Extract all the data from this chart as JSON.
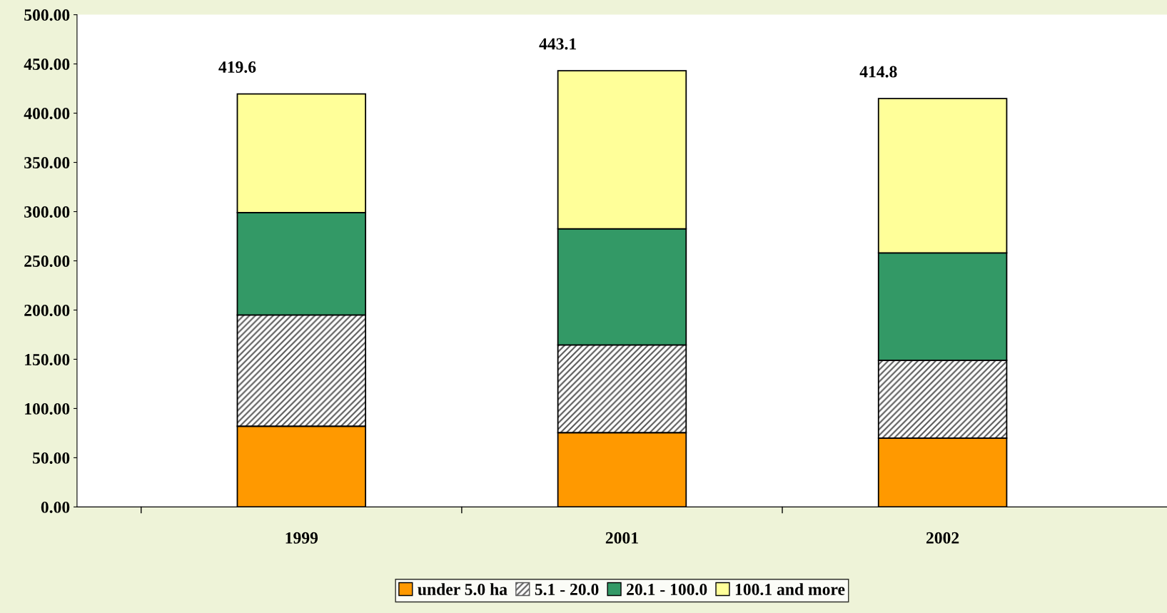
{
  "chart_data": {
    "type": "bar",
    "stacked": true,
    "categories": [
      "1999",
      "2001",
      "2002"
    ],
    "series": [
      {
        "name": "under 5.0 ha",
        "color": "#ff9900",
        "values": [
          82,
          75.5,
          70
        ]
      },
      {
        "name": "5.1 - 20.0",
        "color": "#595959",
        "values": [
          113,
          89,
          79
        ]
      },
      {
        "name": "20.1 - 100.0",
        "color": "#339966",
        "values": [
          104,
          118,
          109
        ]
      },
      {
        "name": "100.1 and more",
        "color": "#ffff99",
        "values": [
          120.6,
          160.6,
          156.8
        ]
      }
    ],
    "totals": [
      "419.6",
      "443.1",
      "414.8"
    ],
    "ylim": [
      0,
      500
    ],
    "yticks": [
      {
        "value": 0,
        "label": "0.00"
      },
      {
        "value": 50,
        "label": "50.00"
      },
      {
        "value": 100,
        "label": "100.00"
      },
      {
        "value": 150,
        "label": "150.00"
      },
      {
        "value": 200,
        "label": "200.00"
      },
      {
        "value": 250,
        "label": "250.00"
      },
      {
        "value": 300,
        "label": "300.00"
      },
      {
        "value": 350,
        "label": "350.00"
      },
      {
        "value": 400,
        "label": "400.00"
      },
      {
        "value": 450,
        "label": "450.00"
      },
      {
        "value": 500,
        "label": "500.00"
      }
    ],
    "grid": false,
    "legend": "bottom"
  }
}
